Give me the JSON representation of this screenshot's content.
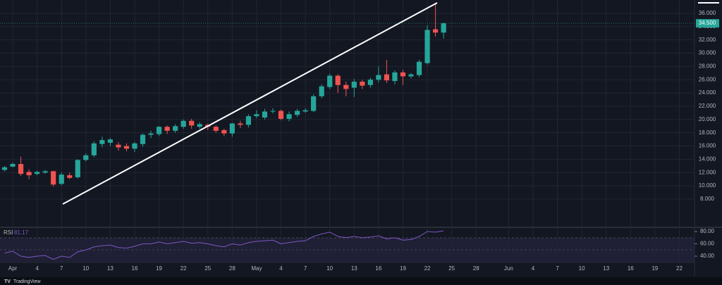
{
  "chart_data": [
    {
      "type": "candlestick",
      "categories": [
        null,
        "Apr",
        null,
        null,
        "4",
        null,
        null,
        "7",
        null,
        null,
        "10",
        null,
        null,
        "13",
        null,
        null,
        "16",
        null,
        null,
        "19",
        null,
        null,
        "22",
        null,
        null,
        "25",
        null,
        null,
        "28",
        null,
        null,
        "May",
        null,
        null,
        "4",
        null,
        null,
        "7",
        null,
        null,
        "10",
        null,
        null,
        "13",
        null,
        null,
        "16",
        null,
        null,
        "19",
        null,
        null,
        "22",
        null,
        null,
        "25",
        null,
        null,
        "28",
        null,
        null,
        null,
        "Jun",
        null,
        null,
        "4",
        null,
        null,
        "7",
        null,
        null,
        "10",
        null,
        null,
        "13",
        null,
        null,
        "16",
        null,
        null,
        "19",
        null,
        null,
        "22",
        null
      ],
      "open": [
        12400,
        12900,
        13300,
        12100,
        11800,
        12000,
        12200,
        10300,
        11600,
        11300,
        13900,
        14600,
        16300,
        16500,
        16200,
        16000,
        15600,
        16300,
        17700,
        17800,
        18900,
        18300,
        18900,
        19800,
        18900,
        19200,
        18900,
        18400,
        17900,
        19400,
        19200,
        20500,
        20300,
        21200,
        21300,
        20100,
        20700,
        21200,
        21300,
        23500,
        24900,
        26600,
        25200,
        24800,
        25700,
        25200,
        26000,
        26800,
        25800,
        27100,
        26500,
        26700,
        28500,
        33600,
        33100,
        null,
        null,
        null,
        null,
        null,
        null,
        null,
        null,
        null,
        null,
        null,
        null,
        null,
        null,
        null,
        null,
        null,
        null,
        null,
        null,
        null,
        null,
        null,
        null,
        null,
        null,
        null,
        null,
        null,
        null
      ],
      "high": [
        13000,
        13500,
        14400,
        12500,
        12300,
        12400,
        12300,
        12000,
        12000,
        14000,
        14900,
        16700,
        17400,
        17200,
        16600,
        16400,
        16600,
        17900,
        18300,
        19000,
        19100,
        19300,
        20000,
        20100,
        19600,
        19400,
        19100,
        18600,
        19500,
        19800,
        20800,
        21400,
        21600,
        21700,
        21500,
        21200,
        21600,
        21700,
        23800,
        25300,
        26900,
        26800,
        25700,
        26100,
        26000,
        26300,
        28000,
        29000,
        27400,
        27500,
        27000,
        29000,
        34200,
        37600,
        34600,
        null,
        null,
        null,
        null,
        null,
        null,
        null,
        null,
        null,
        null,
        null,
        null,
        null,
        null,
        null,
        null,
        null,
        null,
        null,
        null,
        null,
        null,
        null,
        null,
        null,
        null,
        null,
        null,
        null,
        null
      ],
      "low": [
        12200,
        12800,
        11500,
        11000,
        11600,
        11800,
        9900,
        10100,
        11000,
        11100,
        13700,
        14300,
        15800,
        16000,
        15300,
        15200,
        15100,
        15900,
        17200,
        17500,
        17800,
        18000,
        18600,
        18600,
        18600,
        18400,
        18000,
        17500,
        17400,
        18700,
        18800,
        20200,
        20000,
        20900,
        19900,
        19700,
        20400,
        21000,
        21100,
        23200,
        24600,
        24000,
        23500,
        23400,
        24600,
        24800,
        25600,
        25500,
        25300,
        25200,
        26200,
        26400,
        28300,
        32500,
        32200,
        null,
        null,
        null,
        null,
        null,
        null,
        null,
        null,
        null,
        null,
        null,
        null,
        null,
        null,
        null,
        null,
        null,
        null,
        null,
        null,
        null,
        null,
        null,
        null,
        null,
        null,
        null,
        null,
        null,
        null
      ],
      "close": [
        12800,
        13300,
        11800,
        11600,
        12100,
        12200,
        10200,
        11700,
        11200,
        13900,
        14600,
        16400,
        16900,
        17000,
        15800,
        15600,
        16400,
        17700,
        17900,
        18900,
        18300,
        19000,
        19800,
        19100,
        19300,
        18900,
        18300,
        17900,
        19400,
        19200,
        20500,
        20800,
        21200,
        21300,
        20100,
        20800,
        21300,
        21400,
        23500,
        25000,
        26600,
        25200,
        24600,
        25700,
        25100,
        26000,
        26700,
        25900,
        27100,
        26500,
        26800,
        28700,
        33500,
        33100,
        34500,
        null,
        null,
        null,
        null,
        null,
        null,
        null,
        null,
        null,
        null,
        null,
        null,
        null,
        null,
        null,
        null,
        null,
        null,
        null,
        null,
        null,
        null,
        null,
        null,
        null,
        null,
        null,
        null,
        null,
        null
      ],
      "up_color": "#26a69a",
      "down_color": "#ef5350",
      "ylim": [
        3860,
        38010
      ],
      "yticks": [
        {
          "value": 8000,
          "label": "8.000"
        },
        {
          "value": 10000,
          "label": "10.000"
        },
        {
          "value": 12000,
          "label": "12.000"
        },
        {
          "value": 14000,
          "label": "14.000"
        },
        {
          "value": 16000,
          "label": "16.000"
        },
        {
          "value": 18000,
          "label": "18.000"
        },
        {
          "value": 20000,
          "label": "20.000"
        },
        {
          "value": 22000,
          "label": "22.000"
        },
        {
          "value": 24000,
          "label": "24.000"
        },
        {
          "value": 26000,
          "label": "26.000"
        },
        {
          "value": 28000,
          "label": "28.000"
        },
        {
          "value": 30000,
          "label": "30.000"
        },
        {
          "value": 32000,
          "label": "32.000"
        },
        {
          "value": 34000,
          "label": "34.000"
        },
        {
          "value": 36000,
          "label": "36.000"
        }
      ],
      "last_price": {
        "value": 34500,
        "label": "34.500"
      },
      "grid": true,
      "watermark": "TradingView"
    },
    {
      "type": "line",
      "title": "RSI",
      "current": 81.17,
      "color": "#7e57c2",
      "values": [
        45,
        48,
        40,
        38,
        40,
        41,
        35,
        40,
        38,
        47,
        50,
        55,
        57,
        58,
        54,
        53,
        56,
        60,
        60,
        63,
        60,
        62,
        64,
        61,
        62,
        60,
        57,
        55,
        60,
        58,
        62,
        64,
        65,
        66,
        60,
        62,
        64,
        65,
        72,
        76,
        79,
        72,
        70,
        72,
        70,
        71,
        73,
        68,
        70,
        66,
        67,
        72,
        80,
        79,
        81.17,
        null,
        null,
        null,
        null,
        null,
        null,
        null,
        null,
        null,
        null,
        null,
        null,
        null,
        null,
        null,
        null,
        null,
        null,
        null,
        null,
        null,
        null,
        null,
        null,
        null,
        null,
        null,
        null,
        null,
        null
      ],
      "ylim": [
        30.9,
        85.7
      ],
      "yticks": [
        {
          "value": 40,
          "label": "40.00"
        },
        {
          "value": 60,
          "label": "60.00"
        },
        {
          "value": 80,
          "label": "80.00"
        }
      ]
    }
  ]
}
